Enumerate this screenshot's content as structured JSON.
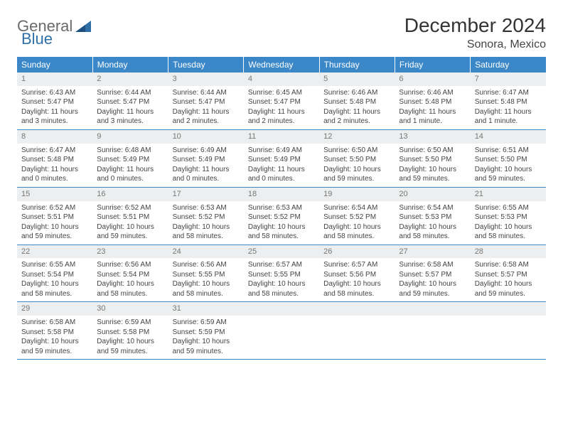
{
  "brand": {
    "general": "General",
    "blue": "Blue"
  },
  "title": "December 2024",
  "location": "Sonora, Mexico",
  "colors": {
    "header_bg": "#3b87c8",
    "header_text": "#ffffff",
    "daynum_bg": "#eceeef",
    "row_border": "#3b87c8",
    "text": "#444444",
    "logo_gray": "#6a6a6a",
    "logo_blue": "#2f6fa8"
  },
  "weekdays": [
    "Sunday",
    "Monday",
    "Tuesday",
    "Wednesday",
    "Thursday",
    "Friday",
    "Saturday"
  ],
  "days": [
    {
      "n": "1",
      "sr": "Sunrise: 6:43 AM",
      "ss": "Sunset: 5:47 PM",
      "d1": "Daylight: 11 hours",
      "d2": "and 3 minutes."
    },
    {
      "n": "2",
      "sr": "Sunrise: 6:44 AM",
      "ss": "Sunset: 5:47 PM",
      "d1": "Daylight: 11 hours",
      "d2": "and 3 minutes."
    },
    {
      "n": "3",
      "sr": "Sunrise: 6:44 AM",
      "ss": "Sunset: 5:47 PM",
      "d1": "Daylight: 11 hours",
      "d2": "and 2 minutes."
    },
    {
      "n": "4",
      "sr": "Sunrise: 6:45 AM",
      "ss": "Sunset: 5:47 PM",
      "d1": "Daylight: 11 hours",
      "d2": "and 2 minutes."
    },
    {
      "n": "5",
      "sr": "Sunrise: 6:46 AM",
      "ss": "Sunset: 5:48 PM",
      "d1": "Daylight: 11 hours",
      "d2": "and 2 minutes."
    },
    {
      "n": "6",
      "sr": "Sunrise: 6:46 AM",
      "ss": "Sunset: 5:48 PM",
      "d1": "Daylight: 11 hours",
      "d2": "and 1 minute."
    },
    {
      "n": "7",
      "sr": "Sunrise: 6:47 AM",
      "ss": "Sunset: 5:48 PM",
      "d1": "Daylight: 11 hours",
      "d2": "and 1 minute."
    },
    {
      "n": "8",
      "sr": "Sunrise: 6:47 AM",
      "ss": "Sunset: 5:48 PM",
      "d1": "Daylight: 11 hours",
      "d2": "and 0 minutes."
    },
    {
      "n": "9",
      "sr": "Sunrise: 6:48 AM",
      "ss": "Sunset: 5:49 PM",
      "d1": "Daylight: 11 hours",
      "d2": "and 0 minutes."
    },
    {
      "n": "10",
      "sr": "Sunrise: 6:49 AM",
      "ss": "Sunset: 5:49 PM",
      "d1": "Daylight: 11 hours",
      "d2": "and 0 minutes."
    },
    {
      "n": "11",
      "sr": "Sunrise: 6:49 AM",
      "ss": "Sunset: 5:49 PM",
      "d1": "Daylight: 11 hours",
      "d2": "and 0 minutes."
    },
    {
      "n": "12",
      "sr": "Sunrise: 6:50 AM",
      "ss": "Sunset: 5:50 PM",
      "d1": "Daylight: 10 hours",
      "d2": "and 59 minutes."
    },
    {
      "n": "13",
      "sr": "Sunrise: 6:50 AM",
      "ss": "Sunset: 5:50 PM",
      "d1": "Daylight: 10 hours",
      "d2": "and 59 minutes."
    },
    {
      "n": "14",
      "sr": "Sunrise: 6:51 AM",
      "ss": "Sunset: 5:50 PM",
      "d1": "Daylight: 10 hours",
      "d2": "and 59 minutes."
    },
    {
      "n": "15",
      "sr": "Sunrise: 6:52 AM",
      "ss": "Sunset: 5:51 PM",
      "d1": "Daylight: 10 hours",
      "d2": "and 59 minutes."
    },
    {
      "n": "16",
      "sr": "Sunrise: 6:52 AM",
      "ss": "Sunset: 5:51 PM",
      "d1": "Daylight: 10 hours",
      "d2": "and 59 minutes."
    },
    {
      "n": "17",
      "sr": "Sunrise: 6:53 AM",
      "ss": "Sunset: 5:52 PM",
      "d1": "Daylight: 10 hours",
      "d2": "and 58 minutes."
    },
    {
      "n": "18",
      "sr": "Sunrise: 6:53 AM",
      "ss": "Sunset: 5:52 PM",
      "d1": "Daylight: 10 hours",
      "d2": "and 58 minutes."
    },
    {
      "n": "19",
      "sr": "Sunrise: 6:54 AM",
      "ss": "Sunset: 5:52 PM",
      "d1": "Daylight: 10 hours",
      "d2": "and 58 minutes."
    },
    {
      "n": "20",
      "sr": "Sunrise: 6:54 AM",
      "ss": "Sunset: 5:53 PM",
      "d1": "Daylight: 10 hours",
      "d2": "and 58 minutes."
    },
    {
      "n": "21",
      "sr": "Sunrise: 6:55 AM",
      "ss": "Sunset: 5:53 PM",
      "d1": "Daylight: 10 hours",
      "d2": "and 58 minutes."
    },
    {
      "n": "22",
      "sr": "Sunrise: 6:55 AM",
      "ss": "Sunset: 5:54 PM",
      "d1": "Daylight: 10 hours",
      "d2": "and 58 minutes."
    },
    {
      "n": "23",
      "sr": "Sunrise: 6:56 AM",
      "ss": "Sunset: 5:54 PM",
      "d1": "Daylight: 10 hours",
      "d2": "and 58 minutes."
    },
    {
      "n": "24",
      "sr": "Sunrise: 6:56 AM",
      "ss": "Sunset: 5:55 PM",
      "d1": "Daylight: 10 hours",
      "d2": "and 58 minutes."
    },
    {
      "n": "25",
      "sr": "Sunrise: 6:57 AM",
      "ss": "Sunset: 5:55 PM",
      "d1": "Daylight: 10 hours",
      "d2": "and 58 minutes."
    },
    {
      "n": "26",
      "sr": "Sunrise: 6:57 AM",
      "ss": "Sunset: 5:56 PM",
      "d1": "Daylight: 10 hours",
      "d2": "and 58 minutes."
    },
    {
      "n": "27",
      "sr": "Sunrise: 6:58 AM",
      "ss": "Sunset: 5:57 PM",
      "d1": "Daylight: 10 hours",
      "d2": "and 59 minutes."
    },
    {
      "n": "28",
      "sr": "Sunrise: 6:58 AM",
      "ss": "Sunset: 5:57 PM",
      "d1": "Daylight: 10 hours",
      "d2": "and 59 minutes."
    },
    {
      "n": "29",
      "sr": "Sunrise: 6:58 AM",
      "ss": "Sunset: 5:58 PM",
      "d1": "Daylight: 10 hours",
      "d2": "and 59 minutes."
    },
    {
      "n": "30",
      "sr": "Sunrise: 6:59 AM",
      "ss": "Sunset: 5:58 PM",
      "d1": "Daylight: 10 hours",
      "d2": "and 59 minutes."
    },
    {
      "n": "31",
      "sr": "Sunrise: 6:59 AM",
      "ss": "Sunset: 5:59 PM",
      "d1": "Daylight: 10 hours",
      "d2": "and 59 minutes."
    }
  ]
}
